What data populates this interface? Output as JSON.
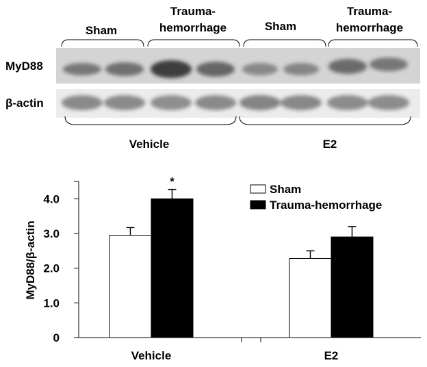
{
  "blot": {
    "lane_groups": [
      {
        "label": "Sham"
      },
      {
        "label_lines": [
          "Trauma-",
          "hemorrhage"
        ]
      },
      {
        "label": "Sham"
      },
      {
        "label_lines": [
          "Trauma-",
          "hemorrhage"
        ]
      }
    ],
    "rows": [
      "MyD88",
      "β-actin"
    ],
    "treatments": [
      "Vehicle",
      "E2"
    ]
  },
  "chart_data": {
    "type": "bar",
    "y_label": "MyD88/β-actin",
    "annotation": "*",
    "categories": [
      "Vehicle",
      "E2"
    ],
    "series": [
      {
        "name": "Sham",
        "color": "#ffffff",
        "values": [
          2.95,
          2.28
        ],
        "errors": [
          0.22,
          0.22
        ]
      },
      {
        "name": "Trauma-hemorrhage",
        "color": "#000000",
        "values": [
          4.0,
          2.9
        ],
        "errors": [
          0.27,
          0.3
        ]
      }
    ],
    "ylim": [
      0,
      4.5
    ],
    "yticks": [
      0,
      {
        "value": 1,
        "label": "1.0"
      },
      {
        "value": 2,
        "label": "2.0"
      },
      {
        "value": 3,
        "label": "3.0"
      },
      {
        "value": 4,
        "label": "4.0"
      }
    ],
    "grid": false
  }
}
